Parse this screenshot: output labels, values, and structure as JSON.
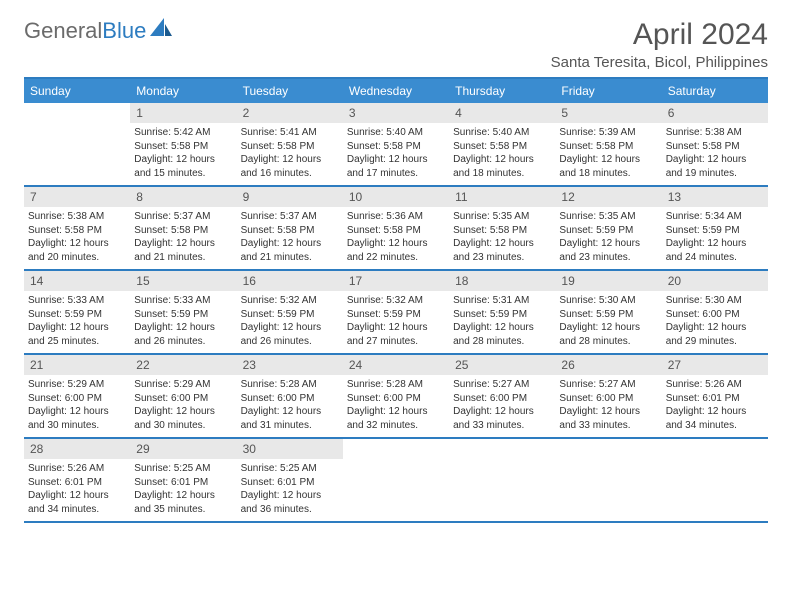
{
  "logo": {
    "word1": "General",
    "word2": "Blue"
  },
  "title": "April 2024",
  "location": "Santa Teresita, Bicol, Philippines",
  "colors": {
    "brand_blue": "#2d7cc0",
    "header_bg": "#3a8cd0",
    "daynum_bg": "#e8e8e8",
    "text": "#333333",
    "muted": "#555555",
    "logo_gray": "#6b6b6b"
  },
  "day_names": [
    "Sunday",
    "Monday",
    "Tuesday",
    "Wednesday",
    "Thursday",
    "Friday",
    "Saturday"
  ],
  "weeks": [
    [
      null,
      {
        "n": "1",
        "sr": "Sunrise: 5:42 AM",
        "ss": "Sunset: 5:58 PM",
        "d1": "Daylight: 12 hours",
        "d2": "and 15 minutes."
      },
      {
        "n": "2",
        "sr": "Sunrise: 5:41 AM",
        "ss": "Sunset: 5:58 PM",
        "d1": "Daylight: 12 hours",
        "d2": "and 16 minutes."
      },
      {
        "n": "3",
        "sr": "Sunrise: 5:40 AM",
        "ss": "Sunset: 5:58 PM",
        "d1": "Daylight: 12 hours",
        "d2": "and 17 minutes."
      },
      {
        "n": "4",
        "sr": "Sunrise: 5:40 AM",
        "ss": "Sunset: 5:58 PM",
        "d1": "Daylight: 12 hours",
        "d2": "and 18 minutes."
      },
      {
        "n": "5",
        "sr": "Sunrise: 5:39 AM",
        "ss": "Sunset: 5:58 PM",
        "d1": "Daylight: 12 hours",
        "d2": "and 18 minutes."
      },
      {
        "n": "6",
        "sr": "Sunrise: 5:38 AM",
        "ss": "Sunset: 5:58 PM",
        "d1": "Daylight: 12 hours",
        "d2": "and 19 minutes."
      }
    ],
    [
      {
        "n": "7",
        "sr": "Sunrise: 5:38 AM",
        "ss": "Sunset: 5:58 PM",
        "d1": "Daylight: 12 hours",
        "d2": "and 20 minutes."
      },
      {
        "n": "8",
        "sr": "Sunrise: 5:37 AM",
        "ss": "Sunset: 5:58 PM",
        "d1": "Daylight: 12 hours",
        "d2": "and 21 minutes."
      },
      {
        "n": "9",
        "sr": "Sunrise: 5:37 AM",
        "ss": "Sunset: 5:58 PM",
        "d1": "Daylight: 12 hours",
        "d2": "and 21 minutes."
      },
      {
        "n": "10",
        "sr": "Sunrise: 5:36 AM",
        "ss": "Sunset: 5:58 PM",
        "d1": "Daylight: 12 hours",
        "d2": "and 22 minutes."
      },
      {
        "n": "11",
        "sr": "Sunrise: 5:35 AM",
        "ss": "Sunset: 5:58 PM",
        "d1": "Daylight: 12 hours",
        "d2": "and 23 minutes."
      },
      {
        "n": "12",
        "sr": "Sunrise: 5:35 AM",
        "ss": "Sunset: 5:59 PM",
        "d1": "Daylight: 12 hours",
        "d2": "and 23 minutes."
      },
      {
        "n": "13",
        "sr": "Sunrise: 5:34 AM",
        "ss": "Sunset: 5:59 PM",
        "d1": "Daylight: 12 hours",
        "d2": "and 24 minutes."
      }
    ],
    [
      {
        "n": "14",
        "sr": "Sunrise: 5:33 AM",
        "ss": "Sunset: 5:59 PM",
        "d1": "Daylight: 12 hours",
        "d2": "and 25 minutes."
      },
      {
        "n": "15",
        "sr": "Sunrise: 5:33 AM",
        "ss": "Sunset: 5:59 PM",
        "d1": "Daylight: 12 hours",
        "d2": "and 26 minutes."
      },
      {
        "n": "16",
        "sr": "Sunrise: 5:32 AM",
        "ss": "Sunset: 5:59 PM",
        "d1": "Daylight: 12 hours",
        "d2": "and 26 minutes."
      },
      {
        "n": "17",
        "sr": "Sunrise: 5:32 AM",
        "ss": "Sunset: 5:59 PM",
        "d1": "Daylight: 12 hours",
        "d2": "and 27 minutes."
      },
      {
        "n": "18",
        "sr": "Sunrise: 5:31 AM",
        "ss": "Sunset: 5:59 PM",
        "d1": "Daylight: 12 hours",
        "d2": "and 28 minutes."
      },
      {
        "n": "19",
        "sr": "Sunrise: 5:30 AM",
        "ss": "Sunset: 5:59 PM",
        "d1": "Daylight: 12 hours",
        "d2": "and 28 minutes."
      },
      {
        "n": "20",
        "sr": "Sunrise: 5:30 AM",
        "ss": "Sunset: 6:00 PM",
        "d1": "Daylight: 12 hours",
        "d2": "and 29 minutes."
      }
    ],
    [
      {
        "n": "21",
        "sr": "Sunrise: 5:29 AM",
        "ss": "Sunset: 6:00 PM",
        "d1": "Daylight: 12 hours",
        "d2": "and 30 minutes."
      },
      {
        "n": "22",
        "sr": "Sunrise: 5:29 AM",
        "ss": "Sunset: 6:00 PM",
        "d1": "Daylight: 12 hours",
        "d2": "and 30 minutes."
      },
      {
        "n": "23",
        "sr": "Sunrise: 5:28 AM",
        "ss": "Sunset: 6:00 PM",
        "d1": "Daylight: 12 hours",
        "d2": "and 31 minutes."
      },
      {
        "n": "24",
        "sr": "Sunrise: 5:28 AM",
        "ss": "Sunset: 6:00 PM",
        "d1": "Daylight: 12 hours",
        "d2": "and 32 minutes."
      },
      {
        "n": "25",
        "sr": "Sunrise: 5:27 AM",
        "ss": "Sunset: 6:00 PM",
        "d1": "Daylight: 12 hours",
        "d2": "and 33 minutes."
      },
      {
        "n": "26",
        "sr": "Sunrise: 5:27 AM",
        "ss": "Sunset: 6:00 PM",
        "d1": "Daylight: 12 hours",
        "d2": "and 33 minutes."
      },
      {
        "n": "27",
        "sr": "Sunrise: 5:26 AM",
        "ss": "Sunset: 6:01 PM",
        "d1": "Daylight: 12 hours",
        "d2": "and 34 minutes."
      }
    ],
    [
      {
        "n": "28",
        "sr": "Sunrise: 5:26 AM",
        "ss": "Sunset: 6:01 PM",
        "d1": "Daylight: 12 hours",
        "d2": "and 34 minutes."
      },
      {
        "n": "29",
        "sr": "Sunrise: 5:25 AM",
        "ss": "Sunset: 6:01 PM",
        "d1": "Daylight: 12 hours",
        "d2": "and 35 minutes."
      },
      {
        "n": "30",
        "sr": "Sunrise: 5:25 AM",
        "ss": "Sunset: 6:01 PM",
        "d1": "Daylight: 12 hours",
        "d2": "and 36 minutes."
      },
      null,
      null,
      null,
      null
    ]
  ]
}
